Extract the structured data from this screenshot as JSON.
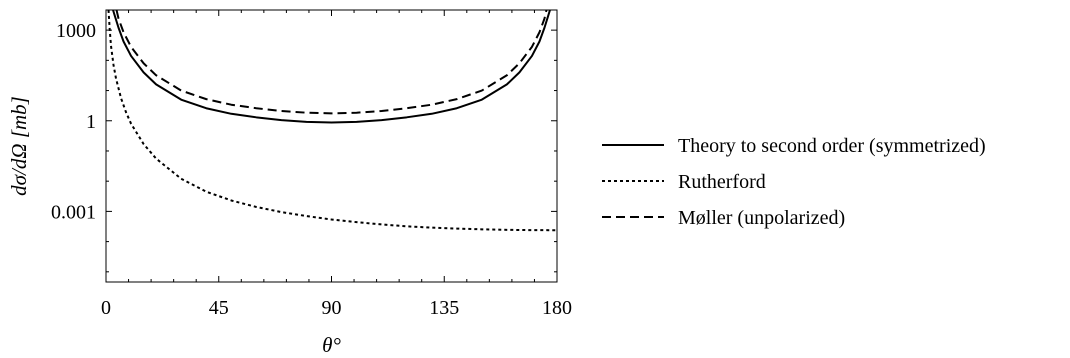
{
  "chart_data": {
    "type": "line",
    "xlabel": "θ°",
    "ylabel": "dσ/dΩ [mb]",
    "xlim": [
      0,
      180
    ],
    "ylim": [
      4.6e-06,
      4640
    ],
    "yscale": "log",
    "xticks": [
      0,
      45,
      90,
      135,
      180
    ],
    "yticks": [
      {
        "value": 1000,
        "label": "1000"
      },
      {
        "value": 1,
        "label": "1"
      },
      {
        "value": 0.001,
        "label": "0.001"
      }
    ],
    "grid": false,
    "legend_position": "right",
    "series": [
      {
        "name": "Theory to second order (symmetrized)",
        "style": "solid",
        "x": [
          2.8,
          3.5,
          5,
          7,
          10,
          15,
          20,
          30,
          40,
          50,
          60,
          70,
          80,
          90,
          100,
          110,
          120,
          130,
          140,
          150,
          160,
          165,
          170,
          173,
          175,
          176.5,
          177.2
        ],
        "y": [
          4640,
          3000,
          1200,
          420,
          140,
          40,
          16,
          5.0,
          2.6,
          1.7,
          1.3,
          1.05,
          0.92,
          0.88,
          0.92,
          1.05,
          1.3,
          1.7,
          2.6,
          5.0,
          16,
          40,
          140,
          420,
          1200,
          3000,
          4640
        ]
      },
      {
        "name": "Rutherford",
        "style": "dotted",
        "x": [
          1.0,
          1.5,
          2,
          3,
          4,
          6,
          8,
          10,
          15,
          20,
          30,
          40,
          50,
          60,
          70,
          80,
          90,
          100,
          110,
          120,
          130,
          140,
          150,
          160,
          170,
          180
        ],
        "y": [
          4640,
          1000,
          300,
          70,
          25,
          5.6,
          1.9,
          0.8,
          0.17,
          0.056,
          0.012,
          0.0045,
          0.0023,
          0.0014,
          0.00095,
          0.0007,
          0.00054,
          0.00044,
          0.00037,
          0.00032,
          0.00029,
          0.00027,
          0.000255,
          0.000245,
          0.00024,
          0.000238
        ]
      },
      {
        "name": "Møller (unpolarized)",
        "style": "dashed",
        "x": [
          4.2,
          5,
          7,
          10,
          15,
          20,
          30,
          40,
          50,
          60,
          70,
          80,
          90,
          100,
          110,
          120,
          130,
          140,
          150,
          160,
          165,
          170,
          173,
          175,
          175.8
        ],
        "y": [
          4640,
          2400,
          850,
          280,
          80,
          32,
          10,
          5.2,
          3.4,
          2.6,
          2.1,
          1.85,
          1.76,
          1.85,
          2.1,
          2.6,
          3.4,
          5.2,
          10,
          32,
          80,
          280,
          850,
          2400,
          4640
        ]
      }
    ]
  }
}
